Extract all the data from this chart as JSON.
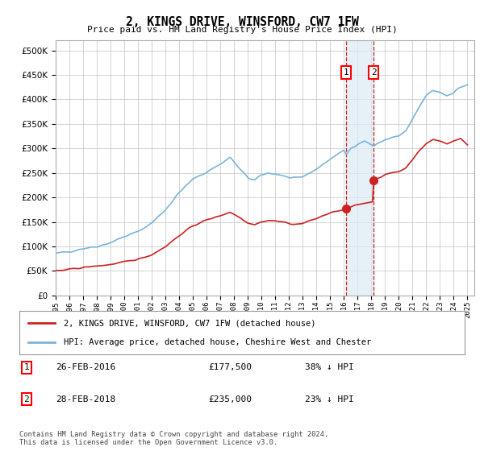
{
  "title": "2, KINGS DRIVE, WINSFORD, CW7 1FW",
  "subtitle": "Price paid vs. HM Land Registry's House Price Index (HPI)",
  "ylim": [
    0,
    520000
  ],
  "yticks": [
    0,
    50000,
    100000,
    150000,
    200000,
    250000,
    300000,
    350000,
    400000,
    450000,
    500000
  ],
  "purchase1_date": "26-FEB-2016",
  "purchase1_price": 177500,
  "purchase2_date": "28-FEB-2018",
  "purchase2_price": 235000,
  "purchase1_hpi_pct": "38% ↓ HPI",
  "purchase2_hpi_pct": "23% ↓ HPI",
  "hpi_line_color": "#7ab4d8",
  "price_line_color": "#cc2222",
  "purchase_marker_color": "#cc2222",
  "vline_color": "#cc2222",
  "shade_color": "#daeaf5",
  "legend_label_price": "2, KINGS DRIVE, WINSFORD, CW7 1FW (detached house)",
  "legend_label_hpi": "HPI: Average price, detached house, Cheshire West and Chester",
  "footnote": "Contains HM Land Registry data © Crown copyright and database right 2024.\nThis data is licensed under the Open Government Licence v3.0.",
  "background_color": "#ffffff",
  "grid_color": "#cccccc"
}
